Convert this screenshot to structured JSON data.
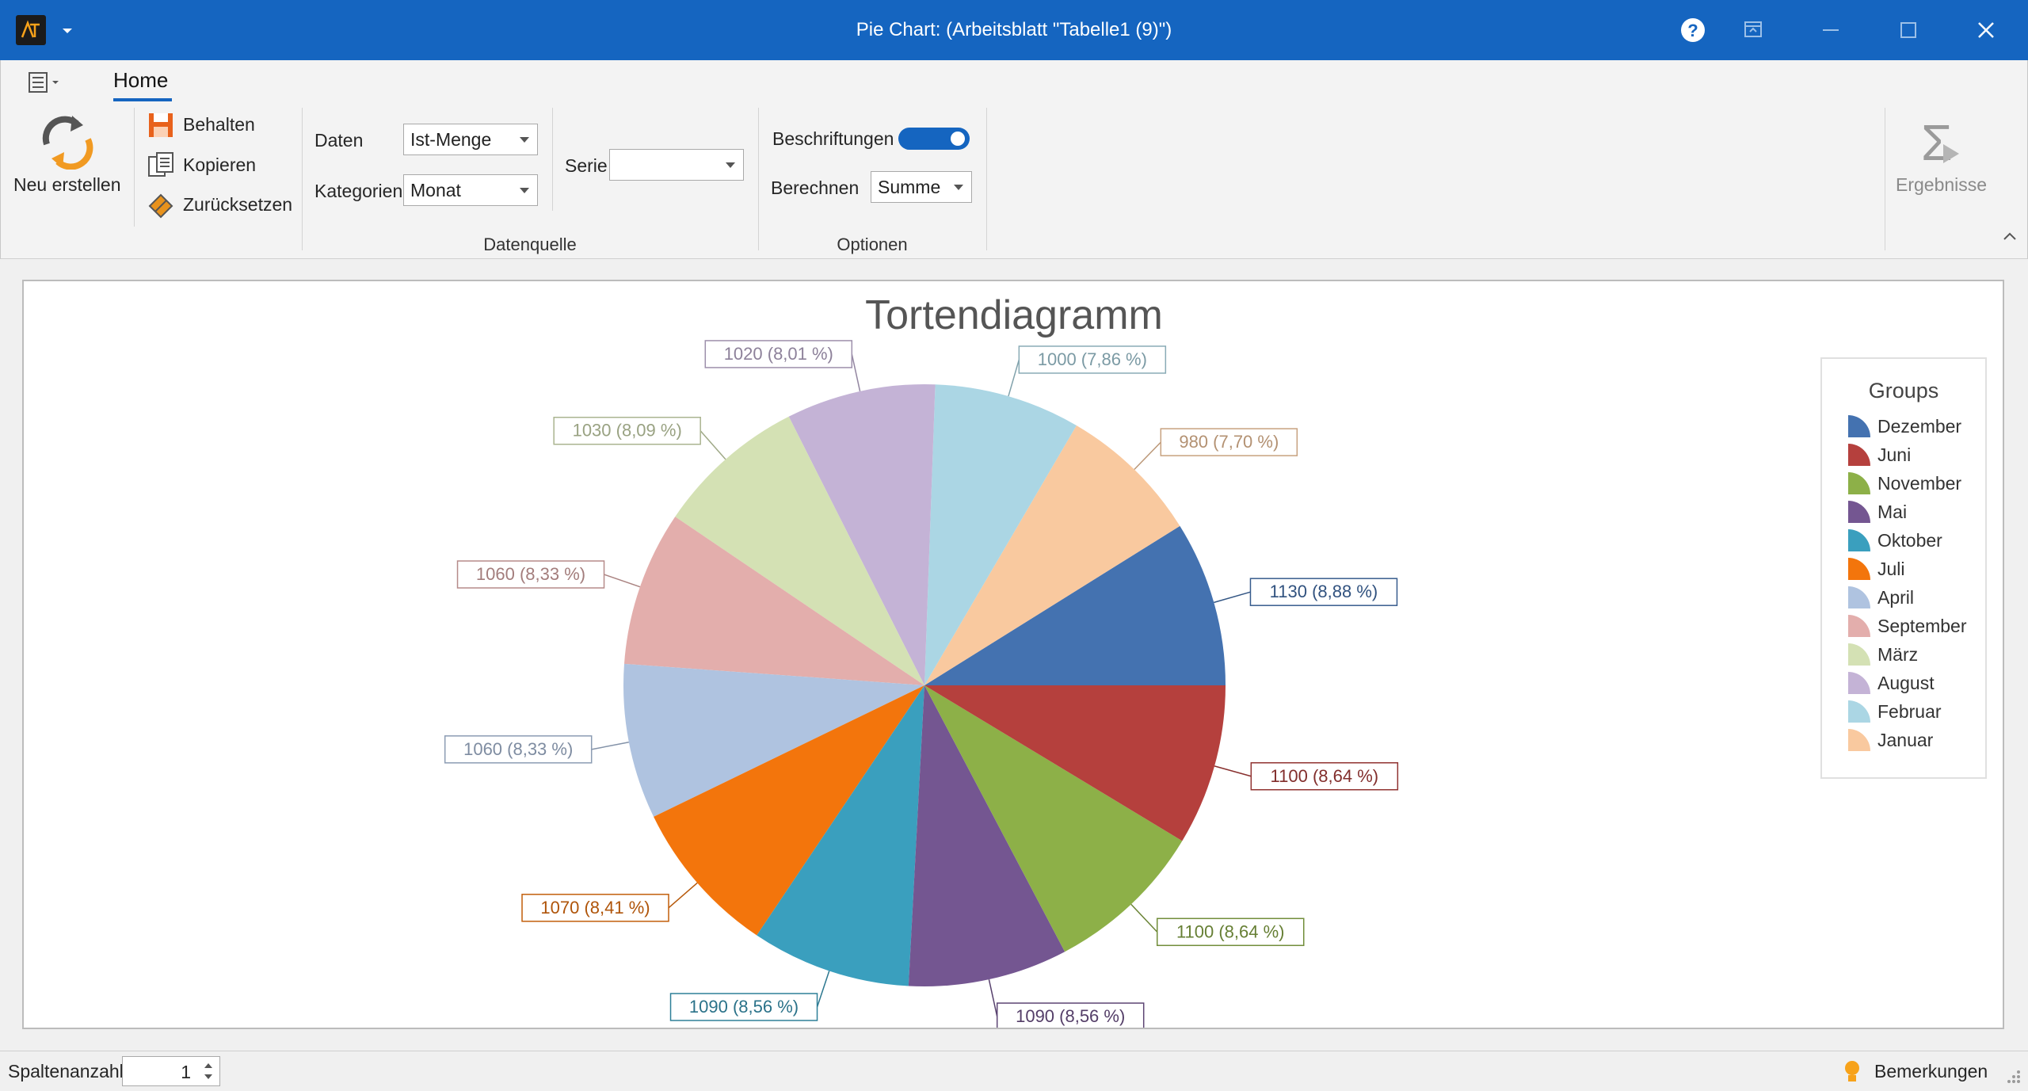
{
  "window": {
    "title": "Pie Chart:  (Arbeitsblatt \"Tabelle1 (9)\")",
    "accent": "#1565c0"
  },
  "ribbon": {
    "tab_home": "Home",
    "new_label": "Neu erstellen",
    "keep_label": "Behalten",
    "copy_label": "Kopieren",
    "reset_label": "Zurücksetzen",
    "data_label": "Daten",
    "data_value": "Ist-Menge",
    "categories_label": "Kategorien",
    "categories_value": "Monat",
    "series_label": "Serie",
    "series_value": "",
    "datasource_group": "Datenquelle",
    "labels_label": "Beschriftungen",
    "labels_toggle_on": true,
    "calc_label": "Berechnen",
    "calc_value": "Summe",
    "options_group": "Optionen",
    "results_label": "Ergebnisse"
  },
  "status": {
    "columns_label": "Spaltenanzahl",
    "columns_value": "1",
    "remarks_label": "Bemerkungen"
  },
  "chart_data": {
    "type": "pie",
    "title": "Tortendiagramm",
    "legend_title": "Groups",
    "legend_position": "right",
    "labels_shown": true,
    "slices": [
      {
        "category": "Dezember",
        "value": 1130,
        "label": "1130 (8,88 %)",
        "color": "#4472b0"
      },
      {
        "category": "Januar",
        "value": 980,
        "label": "980 (7,70 %)",
        "color": "#f9c99f"
      },
      {
        "category": "Februar",
        "value": 1000,
        "label": "1000 (7,86 %)",
        "color": "#abd6e4"
      },
      {
        "category": "August",
        "value": 1020,
        "label": "1020 (8,01 %)",
        "color": "#c4b3d6"
      },
      {
        "category": "März",
        "value": 1030,
        "label": "1030 (8,09 %)",
        "color": "#d4e1b4"
      },
      {
        "category": "September",
        "value": 1060,
        "label": "1060 (8,33 %)",
        "color": "#e3aeac"
      },
      {
        "category": "April",
        "value": 1060,
        "label": "1060 (8,33 %)",
        "color": "#afc3e0"
      },
      {
        "category": "Juli",
        "value": 1070,
        "label": "1070 (8,41 %)",
        "color": "#f3750c"
      },
      {
        "category": "Oktober",
        "value": 1090,
        "label": "1090 (8,56 %)",
        "color": "#3a9fbe"
      },
      {
        "category": "Mai",
        "value": 1090,
        "label": "1090 (8,56 %)",
        "color": "#745691"
      },
      {
        "category": "November",
        "value": 1100,
        "label": "1100 (8,64 %)",
        "color": "#8db048"
      },
      {
        "category": "Juni",
        "value": 1100,
        "label": "1100 (8,64 %)",
        "color": "#b5403d"
      }
    ],
    "legend_order": [
      "Dezember",
      "Juni",
      "November",
      "Mai",
      "Oktober",
      "Juli",
      "April",
      "September",
      "März",
      "August",
      "Februar",
      "Januar"
    ]
  }
}
